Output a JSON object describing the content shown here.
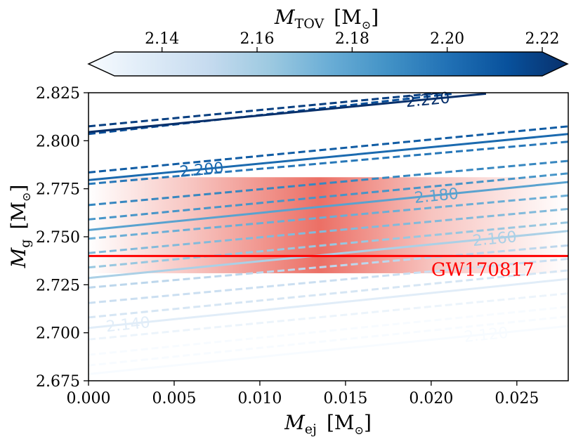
{
  "chart_data": {
    "type": "contour",
    "xlabel_main": "M",
    "xlabel_sub": "ej",
    "xlabel_unit": "[M",
    "xlabel_unit_close": "]",
    "ylabel_main": "M",
    "ylabel_sub": "g",
    "ylabel_unit": "[M",
    "ylabel_unit_close": "]",
    "xlim": [
      0.0,
      0.028
    ],
    "ylim": [
      2.675,
      2.825
    ],
    "xticks": [
      0.0,
      0.005,
      0.01,
      0.015,
      0.02,
      0.025
    ],
    "xtick_labels": [
      "0.000",
      "0.005",
      "0.010",
      "0.015",
      "0.020",
      "0.025"
    ],
    "yticks": [
      2.675,
      2.7,
      2.725,
      2.75,
      2.775,
      2.8,
      2.825
    ],
    "ytick_labels": [
      "2.675",
      "2.700",
      "2.725",
      "2.750",
      "2.775",
      "2.800",
      "2.825"
    ],
    "colorbar": {
      "label_main": "M",
      "label_sub": "TOV",
      "label_unit": "[M",
      "label_unit_close": "]",
      "range": [
        2.13,
        2.22
      ],
      "ticks": [
        2.14,
        2.16,
        2.18,
        2.2,
        2.22
      ],
      "tick_labels": [
        "2.14",
        "2.16",
        "2.18",
        "2.20",
        "2.22"
      ],
      "cmap": [
        "#f7fbff",
        "#deebf7",
        "#c6dbef",
        "#9ecae1",
        "#6baed6",
        "#4292c6",
        "#2171b5",
        "#08519c",
        "#08306b"
      ],
      "extend": "both"
    },
    "contours": [
      {
        "level": 2.12,
        "style": "solid",
        "label": "2.120",
        "y0": 2.6785,
        "x_end": 0.028,
        "y_end": 2.7035,
        "label_x": 0.0232
      },
      {
        "level": 2.125,
        "style": "dashed",
        "y0": 2.683,
        "x_end": 0.028,
        "y_end": 2.7085
      },
      {
        "level": 2.13,
        "style": "dashed",
        "y0": 2.6885,
        "x_end": 0.028,
        "y_end": 2.7135
      },
      {
        "level": 2.135,
        "style": "dashed",
        "y0": 2.6965,
        "x_end": 0.028,
        "y_end": 2.7205
      },
      {
        "level": 2.14,
        "style": "solid",
        "label": "2.140",
        "y0": 2.7025,
        "x_end": 0.028,
        "y_end": 2.728,
        "label_x": 0.0023
      },
      {
        "level": 2.145,
        "style": "dashed",
        "y0": 2.708,
        "x_end": 0.028,
        "y_end": 2.7325
      },
      {
        "level": 2.15,
        "style": "dashed",
        "y0": 2.7155,
        "x_end": 0.028,
        "y_end": 2.7385
      },
      {
        "level": 2.155,
        "style": "dashed",
        "y0": 2.7235,
        "x_end": 0.028,
        "y_end": 2.7455
      },
      {
        "level": 2.16,
        "style": "solid",
        "label": "2.160",
        "y0": 2.7285,
        "x_end": 0.028,
        "y_end": 2.753,
        "label_x": 0.0237
      },
      {
        "level": 2.165,
        "style": "dashed",
        "y0": 2.734,
        "x_end": 0.028,
        "y_end": 2.7575
      },
      {
        "level": 2.17,
        "style": "dashed",
        "y0": 2.7415,
        "x_end": 0.028,
        "y_end": 2.7645
      },
      {
        "level": 2.175,
        "style": "dashed",
        "y0": 2.749,
        "x_end": 0.028,
        "y_end": 2.7715
      },
      {
        "level": 2.18,
        "style": "solid",
        "label": "2.180",
        "y0": 2.7535,
        "x_end": 0.028,
        "y_end": 2.7785,
        "label_x": 0.0203
      },
      {
        "level": 2.185,
        "style": "dashed",
        "y0": 2.759,
        "x_end": 0.028,
        "y_end": 2.783
      },
      {
        "level": 2.19,
        "style": "dashed",
        "y0": 2.7665,
        "x_end": 0.028,
        "y_end": 2.7895
      },
      {
        "level": 2.195,
        "style": "dashed",
        "y0": 2.7775,
        "x_end": 0.028,
        "y_end": 2.7995
      },
      {
        "level": 2.2,
        "style": "solid",
        "label": "2.200",
        "y0": 2.7795,
        "x_end": 0.028,
        "y_end": 2.8035,
        "label_x": 0.0066
      },
      {
        "level": 2.205,
        "style": "dashed",
        "y0": 2.7835,
        "x_end": 0.028,
        "y_end": 2.8075
      },
      {
        "level": 2.21,
        "style": "dashed",
        "y0": 2.8035,
        "x_end": 0.0213,
        "y_end": 2.8245
      },
      {
        "level": 2.215,
        "style": "dashed",
        "y0": 2.8075,
        "x_end": 0.0212,
        "y_end": 2.8255
      },
      {
        "level": 2.22,
        "style": "solid",
        "label": "2.220",
        "y0": 2.8045,
        "x_end": 0.0232,
        "y_end": 2.8245,
        "label_x": 0.0198
      }
    ],
    "band": {
      "y_min": 2.731,
      "y_max": 2.781,
      "peak_x": 0.0135,
      "color": "#e8564a"
    },
    "reference_line": {
      "y": 2.74,
      "color": "#ff0000",
      "label": "GW170817",
      "label_x": 0.02
    }
  }
}
